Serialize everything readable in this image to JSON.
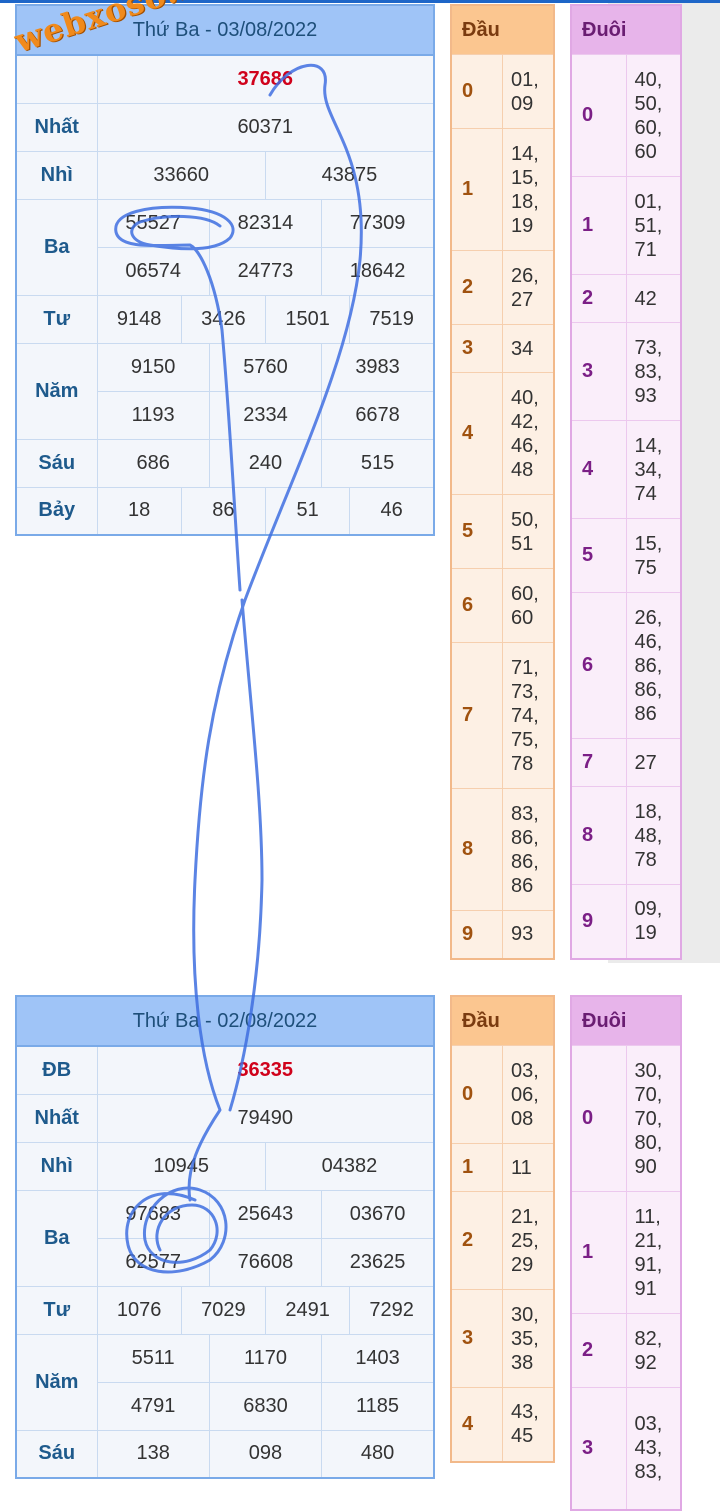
{
  "watermark": "webxoso.net",
  "results": [
    {
      "title": "Thứ Ba - 03/08/2022",
      "db_label": "",
      "db": "37686",
      "nhat_label": "Nhất",
      "nhat": "60371",
      "nhi_label": "Nhì",
      "nhi": [
        "33660",
        "43875"
      ],
      "ba_label": "Ba",
      "ba": [
        "55527",
        "82314",
        "77309",
        "06574",
        "24773",
        "18642"
      ],
      "tu_label": "Tư",
      "tu": [
        "9148",
        "3426",
        "1501",
        "7519"
      ],
      "nam_label": "Năm",
      "nam": [
        "9150",
        "5760",
        "3983",
        "1193",
        "2334",
        "6678"
      ],
      "sau_label": "Sáu",
      "sau": [
        "686",
        "240",
        "515"
      ],
      "bay_label": "Bảy",
      "bay": [
        "18",
        "86",
        "51",
        "46"
      ]
    },
    {
      "title": "Thứ Ba - 02/08/2022",
      "db_label": "ĐB",
      "db": "36335",
      "nhat_label": "Nhất",
      "nhat": "79490",
      "nhi_label": "Nhì",
      "nhi": [
        "10945",
        "04382"
      ],
      "ba_label": "Ba",
      "ba": [
        "97683",
        "25643",
        "03670",
        "62577",
        "76608",
        "23625"
      ],
      "tu_label": "Tư",
      "tu": [
        "1076",
        "7029",
        "2491",
        "7292"
      ],
      "nam_label": "Năm",
      "nam": [
        "5511",
        "1170",
        "1403",
        "4791",
        "6830",
        "1185"
      ],
      "sau_label": "Sáu",
      "sau": [
        "138",
        "098",
        "480"
      ]
    }
  ],
  "dau1": {
    "header": "Đầu",
    "rows": [
      {
        "k": "0",
        "v": "01,\n09"
      },
      {
        "k": "1",
        "v": "14,\n15,\n18,\n19"
      },
      {
        "k": "2",
        "v": "26,\n27"
      },
      {
        "k": "3",
        "v": "34"
      },
      {
        "k": "4",
        "v": "40,\n42,\n46,\n48"
      },
      {
        "k": "5",
        "v": "50,\n51"
      },
      {
        "k": "6",
        "v": "60,\n60"
      },
      {
        "k": "7",
        "v": "71,\n73,\n74,\n75,\n78"
      },
      {
        "k": "8",
        "v": "83,\n86,\n86,\n86"
      },
      {
        "k": "9",
        "v": "93"
      }
    ]
  },
  "duoi1": {
    "header": "Đuôi",
    "rows": [
      {
        "k": "0",
        "v": "40,\n50,\n60,\n60"
      },
      {
        "k": "1",
        "v": "01,\n51,\n71"
      },
      {
        "k": "2",
        "v": "42"
      },
      {
        "k": "3",
        "v": "73,\n83,\n93"
      },
      {
        "k": "4",
        "v": "14,\n34,\n74"
      },
      {
        "k": "5",
        "v": "15,\n75"
      },
      {
        "k": "6",
        "v": "26,\n46,\n86,\n86,\n86"
      },
      {
        "k": "7",
        "v": "27"
      },
      {
        "k": "8",
        "v": "18,\n48,\n78"
      },
      {
        "k": "9",
        "v": "09,\n19"
      }
    ]
  },
  "dau2": {
    "header": "Đầu",
    "rows": [
      {
        "k": "0",
        "v": "03,\n06,\n08"
      },
      {
        "k": "1",
        "v": "11"
      },
      {
        "k": "2",
        "v": "21,\n25,\n29"
      },
      {
        "k": "3",
        "v": "30,\n35,\n38"
      },
      {
        "k": "4",
        "v": "43,\n45"
      }
    ]
  },
  "duoi2": {
    "header": "Đuôi",
    "rows": [
      {
        "k": "0",
        "v": "30,\n70,\n70,\n80,\n90"
      },
      {
        "k": "1",
        "v": "11,\n21,\n91,\n91"
      },
      {
        "k": "2",
        "v": "82,\n92"
      },
      {
        "k": "3",
        "v": "03,\n43,\n83,"
      }
    ]
  }
}
